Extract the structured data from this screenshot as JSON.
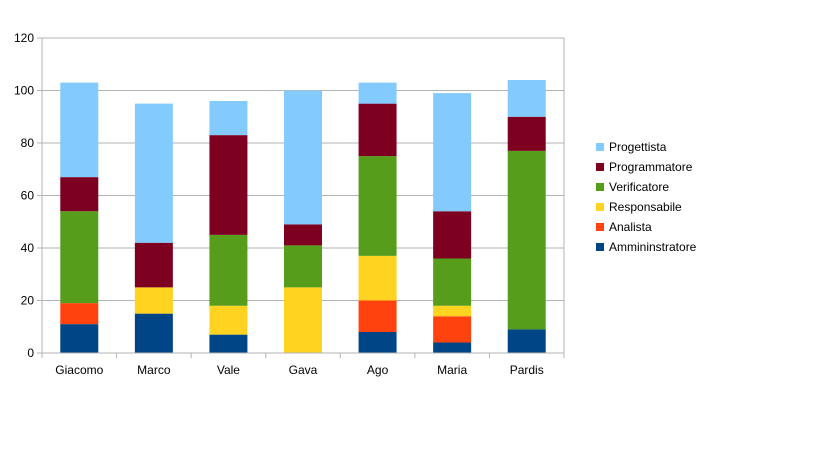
{
  "chart_data": {
    "type": "bar",
    "stacked": true,
    "title": "",
    "xlabel": "",
    "ylabel": "",
    "ylim": [
      0,
      120
    ],
    "yticks": [
      0,
      20,
      40,
      60,
      80,
      100,
      120
    ],
    "grid": true,
    "legend_position": "right",
    "categories": [
      "Giacomo",
      "Marco",
      "Vale",
      "Gava",
      "Ago",
      "Maria",
      "Pardis"
    ],
    "series": [
      {
        "name": "Ammininstratore",
        "color": "#004586",
        "values": [
          11,
          15,
          7,
          0,
          8,
          4,
          9
        ]
      },
      {
        "name": "Analista",
        "color": "#ff420e",
        "values": [
          8,
          0,
          0,
          0,
          12,
          10,
          0
        ]
      },
      {
        "name": "Responsabile",
        "color": "#ffd320",
        "values": [
          0,
          10,
          11,
          25,
          17,
          4,
          0
        ]
      },
      {
        "name": "Verificatore",
        "color": "#579d1c",
        "values": [
          35,
          0,
          27,
          16,
          38,
          18,
          68
        ]
      },
      {
        "name": "Programmatore",
        "color": "#7e0021",
        "values": [
          13,
          17,
          38,
          8,
          20,
          18,
          13
        ]
      },
      {
        "name": "Progettista",
        "color": "#83caff",
        "values": [
          36,
          53,
          13,
          51,
          8,
          45,
          14
        ]
      }
    ]
  }
}
